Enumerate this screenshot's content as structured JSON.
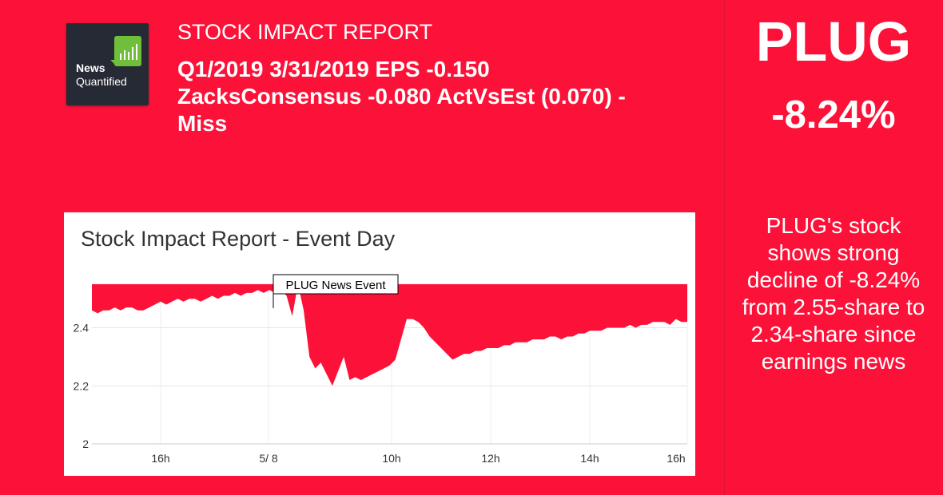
{
  "logo": {
    "line1": "News",
    "line2": "Quantified"
  },
  "header": {
    "label": "STOCK IMPACT REPORT",
    "headline": "Q1/2019 3/31/2019 EPS -0.150 ZacksConsensus -0.080 ActVsEst (0.070) - Miss"
  },
  "side": {
    "ticker": "PLUG",
    "change": "-8.24%",
    "summary": "PLUG's stock shows strong decline of -8.24% from 2.55-share to 2.34-share since earnings news"
  },
  "colors": {
    "background": "#fc1238",
    "fill": "#fc1238",
    "panel": "#ffffff"
  },
  "chart_data": {
    "type": "area",
    "title": "Stock Impact Report - Event Day",
    "event_label": "PLUG News Event",
    "xlabel": "",
    "ylabel": "",
    "ylim": [
      2.0,
      2.55
    ],
    "baseline": 2.55,
    "grid": true,
    "legend": "none",
    "x_ticks": [
      "16h",
      "5/ 8",
      "10h",
      "12h",
      "14h",
      "16h"
    ],
    "y_ticks": [
      "2",
      "2.2",
      "2.4"
    ],
    "y_tick_values": [
      2.0,
      2.2,
      2.4
    ],
    "series": [
      {
        "values": [
          2.46,
          2.45,
          2.46,
          2.46,
          2.47,
          2.46,
          2.47,
          2.47,
          2.46,
          2.46,
          2.47,
          2.48,
          2.49,
          2.48,
          2.49,
          2.5,
          2.49,
          2.5,
          2.5,
          2.49,
          2.5,
          2.51,
          2.5,
          2.51,
          2.51,
          2.52,
          2.51,
          2.52,
          2.52,
          2.53,
          2.52,
          2.53,
          2.52,
          2.53,
          2.51,
          2.44,
          2.55,
          2.46,
          2.3,
          2.26,
          2.28,
          2.24,
          2.2,
          2.25,
          2.3,
          2.22,
          2.23,
          2.22,
          2.23,
          2.24,
          2.25,
          2.26,
          2.27,
          2.29,
          2.36,
          2.43,
          2.43,
          2.42,
          2.4,
          2.37,
          2.35,
          2.33,
          2.31,
          2.29,
          2.3,
          2.31,
          2.31,
          2.32,
          2.32,
          2.33,
          2.33,
          2.33,
          2.34,
          2.34,
          2.35,
          2.35,
          2.35,
          2.36,
          2.36,
          2.36,
          2.37,
          2.37,
          2.36,
          2.37,
          2.37,
          2.38,
          2.38,
          2.39,
          2.39,
          2.39,
          2.4,
          2.4,
          2.4,
          2.4,
          2.41,
          2.4,
          2.41,
          2.41,
          2.42,
          2.42,
          2.42,
          2.41,
          2.43,
          2.42,
          2.42
        ]
      }
    ]
  }
}
